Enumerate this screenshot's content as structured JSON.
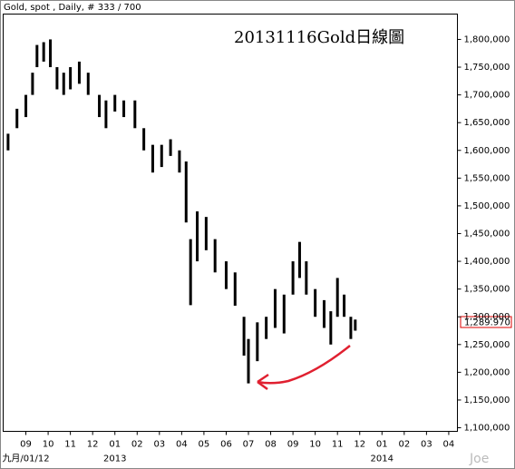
{
  "chart_data": {
    "type": "range-bar",
    "header": "Gold, spot , Daily, # 333 / 700",
    "title": "20131116Gold日線圖",
    "watermark": "Joe",
    "last_price_label": "1,289.970",
    "color": "#000000",
    "x": [
      -0.8,
      -0.4,
      0.0,
      0.3,
      0.5,
      0.8,
      1.1,
      1.4,
      1.7,
      2.0,
      2.4,
      2.8,
      3.3,
      3.6,
      4.0,
      4.4,
      4.9,
      5.3,
      5.7,
      6.1,
      6.5,
      6.9,
      7.2,
      7.4,
      7.7,
      8.1,
      8.5,
      9.0,
      9.4,
      9.8,
      10.0,
      10.4,
      10.8,
      11.2,
      11.6,
      12.0,
      12.3,
      12.6,
      13.0,
      13.4,
      13.7,
      14.0,
      14.3,
      14.6,
      14.8
    ],
    "low": [
      1600000,
      1640000,
      1660000,
      1700000,
      1750000,
      1760000,
      1750000,
      1710000,
      1700000,
      1710000,
      1720000,
      1700000,
      1660000,
      1640000,
      1670000,
      1660000,
      1640000,
      1600000,
      1560000,
      1570000,
      1590000,
      1560000,
      1470000,
      1321000,
      1400000,
      1420000,
      1380000,
      1350000,
      1320000,
      1230000,
      1180000,
      1220000,
      1260000,
      1280000,
      1270000,
      1340000,
      1370000,
      1340000,
      1300000,
      1280000,
      1250000,
      1300000,
      1300000,
      1260000,
      1275000
    ],
    "high": [
      1630000,
      1675000,
      1700000,
      1740000,
      1790000,
      1795000,
      1800000,
      1750000,
      1740000,
      1750000,
      1760000,
      1740000,
      1700000,
      1690000,
      1700000,
      1690000,
      1690000,
      1640000,
      1610000,
      1610000,
      1620000,
      1600000,
      1580000,
      1440000,
      1490000,
      1480000,
      1440000,
      1400000,
      1380000,
      1300000,
      1260000,
      1290000,
      1300000,
      1350000,
      1340000,
      1400000,
      1435000,
      1400000,
      1350000,
      1330000,
      1310000,
      1370000,
      1340000,
      1300000,
      1295000
    ],
    "xlim": [
      -1.02,
      19.39
    ],
    "xticks": [
      {
        "value": 0,
        "label": "09"
      },
      {
        "value": 1,
        "label": "10"
      },
      {
        "value": 2,
        "label": "11"
      },
      {
        "value": 3,
        "label": "12"
      },
      {
        "value": 4,
        "label": "01"
      },
      {
        "value": 5,
        "label": "02"
      },
      {
        "value": 6,
        "label": "03"
      },
      {
        "value": 7,
        "label": "04"
      },
      {
        "value": 8,
        "label": "05"
      },
      {
        "value": 9,
        "label": "06"
      },
      {
        "value": 10,
        "label": "07"
      },
      {
        "value": 11,
        "label": "08"
      },
      {
        "value": 12,
        "label": "09"
      },
      {
        "value": 13,
        "label": "10"
      },
      {
        "value": 14,
        "label": "11"
      },
      {
        "value": 15,
        "label": "12"
      },
      {
        "value": 16,
        "label": "01"
      },
      {
        "value": 17,
        "label": "02"
      },
      {
        "value": 18,
        "label": "03"
      },
      {
        "value": 19,
        "label": "04"
      }
    ],
    "x_period_labels": [
      {
        "value": 0,
        "label": "九月/01/12"
      },
      {
        "value": 4,
        "label": "2013"
      },
      {
        "value": 16,
        "label": "2014"
      }
    ],
    "ylim": [
      1093500,
      1845700
    ],
    "yticks": [
      {
        "value": 1100000,
        "label": "1,100,000"
      },
      {
        "value": 1150000,
        "label": "1,150,000"
      },
      {
        "value": 1200000,
        "label": "1,200,000"
      },
      {
        "value": 1250000,
        "label": "1,250,000"
      },
      {
        "value": 1300000,
        "label": "1,300,000"
      },
      {
        "value": 1350000,
        "label": "1,350,000"
      },
      {
        "value": 1400000,
        "label": "1,400,000"
      },
      {
        "value": 1450000,
        "label": "1,450,000"
      },
      {
        "value": 1500000,
        "label": "1,500,000"
      },
      {
        "value": 1550000,
        "label": "1,550,000"
      },
      {
        "value": 1600000,
        "label": "1,600,000"
      },
      {
        "value": 1650000,
        "label": "1,650,000"
      },
      {
        "value": 1700000,
        "label": "1,700,000"
      },
      {
        "value": 1750000,
        "label": "1,750,000"
      },
      {
        "value": 1800000,
        "label": "1,800,000"
      }
    ]
  }
}
